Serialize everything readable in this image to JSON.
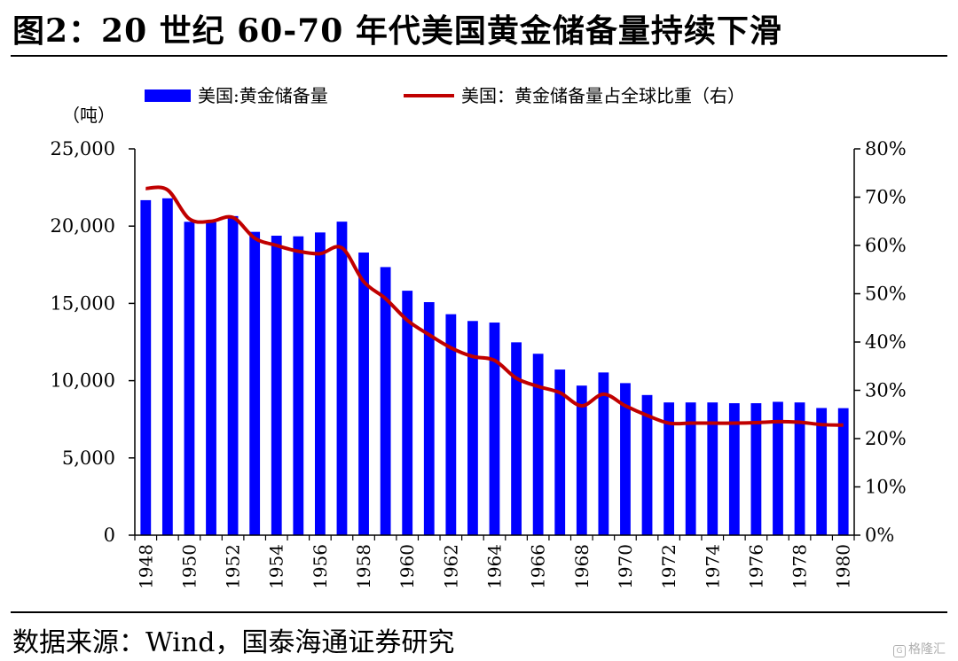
{
  "figure": {
    "title": "图2：20 世纪 60-70 年代美国黄金储备量持续下滑",
    "source": "数据来源：Wind，国泰海通证券研究",
    "watermark": "格隆汇"
  },
  "chart_data": {
    "type": "bar+line",
    "y_left_unit": "（吨）",
    "y_left_ticks": [
      "0",
      "5,000",
      "10,000",
      "15,000",
      "20,000",
      "25,000"
    ],
    "y_left_lim": [
      0,
      25000
    ],
    "y_right_ticks": [
      "0%",
      "10%",
      "20%",
      "30%",
      "40%",
      "50%",
      "60%",
      "70%",
      "80%"
    ],
    "y_right_lim": [
      0,
      80
    ],
    "x": [
      1948,
      1949,
      1950,
      1951,
      1952,
      1953,
      1954,
      1955,
      1956,
      1957,
      1958,
      1959,
      1960,
      1961,
      1962,
      1963,
      1964,
      1965,
      1966,
      1967,
      1968,
      1969,
      1970,
      1971,
      1972,
      1973,
      1974,
      1975,
      1976,
      1977,
      1978,
      1979,
      1980
    ],
    "x_tick_labels": [
      "1948",
      "1950",
      "1952",
      "1954",
      "1956",
      "1958",
      "1960",
      "1962",
      "1964",
      "1966",
      "1968",
      "1970",
      "1972",
      "1974",
      "1976",
      "1978",
      "1980"
    ],
    "legend": "top",
    "grid": false,
    "series": [
      {
        "name": "美国:黄金储备量",
        "type": "bar",
        "axis": "left",
        "color": "#0000ff",
        "values": [
          21680,
          21800,
          20280,
          20250,
          20650,
          19630,
          19380,
          19340,
          19590,
          20290,
          18290,
          17350,
          15820,
          15080,
          14300,
          13860,
          13760,
          12480,
          11740,
          10720,
          9680,
          10530,
          9840,
          9070,
          8590,
          8590,
          8590,
          8540,
          8540,
          8630,
          8590,
          8230,
          8220
        ]
      },
      {
        "name": "美国：黄金储备量占全球比重（右）",
        "type": "line",
        "axis": "right",
        "color": "#c00000",
        "values": [
          71.8,
          71.5,
          65.5,
          65.0,
          65.8,
          61.5,
          60.0,
          58.8,
          58.3,
          59.5,
          52.5,
          49.0,
          44.5,
          41.5,
          38.8,
          37.0,
          36.2,
          32.5,
          30.8,
          29.5,
          26.8,
          29.2,
          26.8,
          24.8,
          23.2,
          23.2,
          23.2,
          23.2,
          23.3,
          23.5,
          23.4,
          22.9,
          22.8
        ]
      }
    ]
  }
}
